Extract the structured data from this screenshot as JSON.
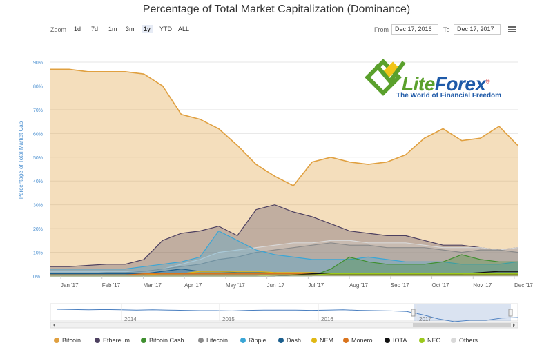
{
  "title": "Percentage of Total Market Capitalization (Dominance)",
  "toolbar": {
    "zoom_label": "Zoom",
    "zoom_buttons": [
      "1d",
      "7d",
      "1m",
      "3m",
      "1y",
      "YTD",
      "ALL"
    ],
    "active_zoom": "1y",
    "from_label": "From",
    "from_value": "Dec 17, 2016",
    "to_label": "To",
    "to_value": "Dec 17, 2017"
  },
  "logo": {
    "brand_part1": "Lite",
    "brand_part2": "Forex",
    "tagline": "The World of Financial Freedom",
    "mark": "®"
  },
  "colors": {
    "bitcoin": "#e0a040",
    "ethereum": "#4d4060",
    "bitcoin_cash": "#3f8f2f",
    "litecoin": "#8a8a8a",
    "ripple": "#3aa6d6",
    "dash": "#1c5f8e",
    "nem": "#e0b814",
    "monero": "#d9731c",
    "iota": "#111111",
    "neo": "#9bc91c",
    "others": "#d9d9d9"
  },
  "chart_data": {
    "type": "area",
    "title": "Percentage of Total Market Capitalization (Dominance)",
    "ylabel": "Percentage of Total Market Cap",
    "xlabel": "",
    "ylim": [
      0,
      90
    ],
    "y_ticks": [
      "0%",
      "10%",
      "20%",
      "30%",
      "40%",
      "50%",
      "60%",
      "70%",
      "80%",
      "90%"
    ],
    "x_ticks": [
      "Jan '17",
      "Feb '17",
      "Mar '17",
      "Apr '17",
      "May '17",
      "Jun '17",
      "Jul '17",
      "Aug '17",
      "Sep '17",
      "Oct '17",
      "Nov '17",
      "Dec '17"
    ],
    "x": [
      "Dec 17",
      "Jan 1",
      "Jan 15",
      "Feb 1",
      "Feb 15",
      "Mar 1",
      "Mar 15",
      "Apr 1",
      "Apr 15",
      "May 1",
      "May 15",
      "Jun 1",
      "Jun 15",
      "Jul 1",
      "Jul 15",
      "Aug 1",
      "Aug 15",
      "Sep 1",
      "Sep 15",
      "Oct 1",
      "Oct 15",
      "Nov 1",
      "Nov 15",
      "Dec 1",
      "Dec 10",
      "Dec 17"
    ],
    "series": [
      {
        "name": "Bitcoin",
        "values": [
          87,
          87,
          86,
          86,
          86,
          85,
          80,
          68,
          66,
          62,
          55,
          47,
          42,
          38,
          48,
          50,
          48,
          47,
          48,
          51,
          58,
          62,
          57,
          58,
          63,
          55
        ]
      },
      {
        "name": "Ethereum",
        "values": [
          4,
          4,
          4.5,
          5,
          5,
          7,
          15,
          18,
          19,
          21,
          17,
          28,
          30,
          27,
          25,
          22,
          19,
          18,
          17,
          17,
          15,
          13,
          13,
          12,
          11,
          12
        ]
      },
      {
        "name": "Bitcoin Cash",
        "values": [
          0,
          0,
          0,
          0,
          0,
          0,
          0,
          0,
          0,
          0,
          0,
          0,
          0,
          0,
          0,
          3,
          8,
          6,
          5,
          5,
          5,
          6,
          9,
          7,
          6,
          6
        ]
      },
      {
        "name": "Litecoin",
        "values": [
          1,
          1,
          1,
          1.5,
          1.5,
          2,
          3,
          4,
          5,
          7,
          8,
          10,
          11,
          12,
          13,
          14,
          13,
          13,
          12,
          12,
          12,
          11,
          10,
          11,
          11,
          10
        ]
      },
      {
        "name": "Ripple",
        "values": [
          3,
          3,
          3,
          3,
          3,
          4,
          5,
          6,
          8,
          19,
          15,
          11,
          9,
          8,
          7,
          7,
          7,
          8,
          7,
          6,
          6,
          6,
          5,
          5,
          5,
          6
        ]
      },
      {
        "name": "Dash",
        "values": [
          1,
          1,
          1,
          1,
          1,
          1,
          2,
          3,
          2,
          2,
          1.5,
          1.5,
          1.5,
          1,
          1,
          1,
          1,
          1,
          1,
          1,
          1,
          1,
          1,
          1,
          1,
          1
        ]
      },
      {
        "name": "NEM",
        "values": [
          0.5,
          0.5,
          0.5,
          0.5,
          0.5,
          0.5,
          1,
          1,
          2,
          2,
          2,
          2,
          1.5,
          1.5,
          1.5,
          1,
          1,
          1,
          1,
          1,
          1,
          1,
          1,
          1,
          1,
          1
        ]
      },
      {
        "name": "Monero",
        "values": [
          0.5,
          0.5,
          0.5,
          0.5,
          0.5,
          1,
          1,
          1,
          1,
          1,
          1,
          1,
          1,
          1,
          1,
          1,
          1,
          1,
          1,
          1,
          1,
          1,
          1,
          1,
          1,
          1
        ]
      },
      {
        "name": "IOTA",
        "values": [
          0,
          0,
          0,
          0,
          0,
          0,
          0,
          0,
          0,
          0,
          0,
          0,
          0,
          0.5,
          1,
          1,
          1,
          1,
          1,
          1,
          1,
          1,
          1,
          1.5,
          2,
          2
        ]
      },
      {
        "name": "NEO",
        "values": [
          0,
          0,
          0,
          0,
          0,
          0,
          0,
          0,
          0,
          0,
          0,
          0,
          0.5,
          0.5,
          0.5,
          1,
          1,
          1,
          1,
          1,
          1,
          1,
          1,
          1,
          1,
          1
        ]
      },
      {
        "name": "Others",
        "values": [
          2,
          2,
          2,
          2,
          2,
          2,
          3,
          5,
          7,
          10,
          11,
          12,
          13,
          14,
          14,
          15,
          15,
          14,
          14,
          14,
          13,
          12,
          12,
          12,
          11,
          12
        ]
      }
    ],
    "navigator": {
      "labels": [
        "2014",
        "2015",
        "2016",
        "2017"
      ],
      "values": [
        90,
        89,
        88,
        89,
        88,
        87,
        88,
        87,
        86,
        85,
        85,
        84,
        86,
        87,
        87,
        87,
        86,
        87,
        88,
        86,
        85,
        84,
        82,
        70,
        55,
        45,
        50,
        50,
        58,
        60
      ]
    }
  }
}
